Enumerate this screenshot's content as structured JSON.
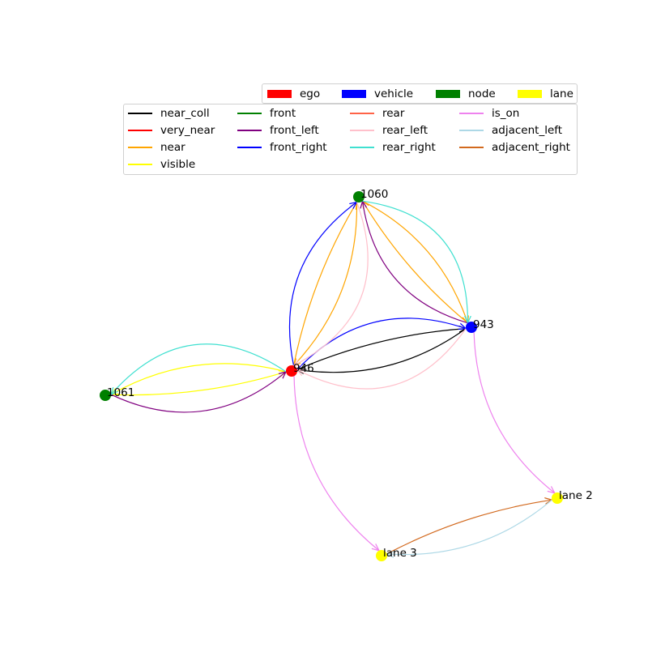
{
  "node_legend": [
    {
      "label": "ego",
      "color": "#ff0000"
    },
    {
      "label": "vehicle",
      "color": "#0000ff"
    },
    {
      "label": "node",
      "color": "#008000"
    },
    {
      "label": "lane",
      "color": "#ffff00"
    }
  ],
  "edge_legend": [
    {
      "label": "near_coll",
      "color": "#000000"
    },
    {
      "label": "very_near",
      "color": "#ff0000"
    },
    {
      "label": "near",
      "color": "#ffa500"
    },
    {
      "label": "visible",
      "color": "#ffff00"
    },
    {
      "label": "front",
      "color": "#008000"
    },
    {
      "label": "front_left",
      "color": "#800080"
    },
    {
      "label": "front_right",
      "color": "#0000ff"
    },
    {
      "label": "rear",
      "color": "#ff6347"
    },
    {
      "label": "rear_left",
      "color": "#ffc0cb"
    },
    {
      "label": "rear_right",
      "color": "#40e0d0"
    },
    {
      "label": "is_on",
      "color": "#ee82ee"
    },
    {
      "label": "adjacent_left",
      "color": "#add8e6"
    },
    {
      "label": "adjacent_right",
      "color": "#d2691e"
    }
  ],
  "nodes": [
    {
      "id": "1060",
      "label": "1060",
      "type": "node",
      "color": "#008000"
    },
    {
      "id": "943",
      "label": "943",
      "type": "vehicle",
      "color": "#0000ff"
    },
    {
      "id": "946",
      "label": "946",
      "type": "ego",
      "color": "#ff0000"
    },
    {
      "id": "1061",
      "label": "1061",
      "type": "node",
      "color": "#008000"
    },
    {
      "id": "lane2",
      "label": "lane 2",
      "type": "lane",
      "color": "#ffff00"
    },
    {
      "id": "lane3",
      "label": "lane 3",
      "type": "lane",
      "color": "#ffff00"
    }
  ],
  "edges": [
    {
      "source": "946",
      "target": "943",
      "relation": "near_coll"
    },
    {
      "source": "943",
      "target": "946",
      "relation": "near_coll"
    },
    {
      "source": "946",
      "target": "943",
      "relation": "front_right"
    },
    {
      "source": "943",
      "target": "946",
      "relation": "rear_left"
    },
    {
      "source": "946",
      "target": "1060",
      "relation": "near"
    },
    {
      "source": "1060",
      "target": "946",
      "relation": "near"
    },
    {
      "source": "946",
      "target": "1060",
      "relation": "front_right"
    },
    {
      "source": "1060",
      "target": "946",
      "relation": "rear_left"
    },
    {
      "source": "943",
      "target": "1060",
      "relation": "near"
    },
    {
      "source": "1060",
      "target": "943",
      "relation": "near"
    },
    {
      "source": "943",
      "target": "1060",
      "relation": "front_left"
    },
    {
      "source": "1060",
      "target": "943",
      "relation": "rear_right"
    },
    {
      "source": "1061",
      "target": "946",
      "relation": "visible"
    },
    {
      "source": "946",
      "target": "1061",
      "relation": "visible"
    },
    {
      "source": "1061",
      "target": "946",
      "relation": "front_left"
    },
    {
      "source": "946",
      "target": "1061",
      "relation": "rear_right"
    },
    {
      "source": "946",
      "target": "lane3",
      "relation": "is_on"
    },
    {
      "source": "943",
      "target": "lane2",
      "relation": "is_on"
    },
    {
      "source": "lane3",
      "target": "lane2",
      "relation": "adjacent_right"
    },
    {
      "source": "lane2",
      "target": "lane3",
      "relation": "adjacent_left"
    }
  ]
}
